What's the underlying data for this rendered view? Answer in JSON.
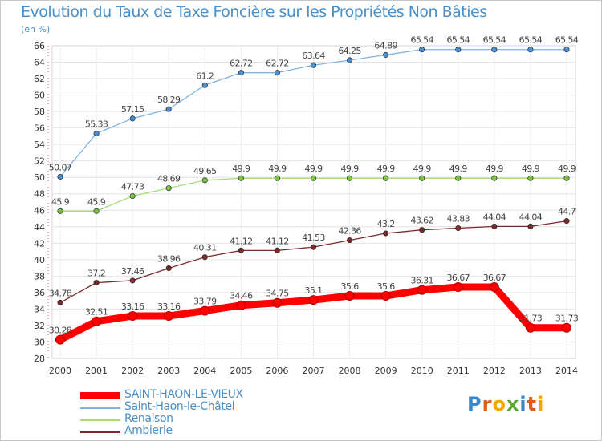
{
  "chart_data": {
    "type": "line",
    "title": "Evolution du Taux de Taxe Foncière sur les Propriétés Non Bâties",
    "ylabel": "(en %)",
    "xlabel": "",
    "ylim": [
      28,
      66
    ],
    "ytick_step": 2,
    "categories": [
      "2000",
      "2001",
      "2002",
      "2003",
      "2004",
      "2005",
      "2006",
      "2007",
      "2008",
      "2009",
      "2010",
      "2011",
      "2012",
      "2013",
      "2014"
    ],
    "series": [
      {
        "name": "SAINT-HAON-LE-VIEUX",
        "color": "#ff0000",
        "values": [
          30.28,
          32.51,
          33.16,
          33.16,
          33.79,
          34.46,
          34.75,
          35.1,
          35.6,
          35.6,
          36.31,
          36.67,
          36.67,
          31.73,
          31.73
        ],
        "labels": [
          "30.28",
          "32.51",
          "33.16",
          "33.16",
          "33.79",
          "34.46",
          "34.75",
          "35.1",
          "35.6",
          "35.6",
          "36.31",
          "36.67",
          "36.67",
          "31.73",
          "31.73"
        ]
      },
      {
        "name": "Saint-Haon-le-Châtel",
        "color": "#7fb2e0",
        "marker": "#4a8fd0",
        "values": [
          50.07,
          55.33,
          57.15,
          58.29,
          61.2,
          62.72,
          62.72,
          63.64,
          64.25,
          64.89,
          65.54,
          65.54,
          65.54,
          65.54,
          65.54
        ],
        "labels": [
          "50.07",
          "55.33",
          "57.15",
          "58.29",
          "61.2",
          "62.72",
          "62.72",
          "63.64",
          "64.25",
          "64.89",
          "65.54",
          "65.54",
          "65.54",
          "65.54",
          "65.54"
        ]
      },
      {
        "name": "Renaison",
        "color": "#a8dc78",
        "marker": "#7cc444",
        "values": [
          45.9,
          45.9,
          47.73,
          48.69,
          49.65,
          49.9,
          49.9,
          49.9,
          49.9,
          49.9,
          49.9,
          49.9,
          49.9,
          49.9,
          49.9
        ],
        "labels": [
          "45.9",
          "45.9",
          "47.73",
          "48.69",
          "49.65",
          "49.9",
          "49.9",
          "49.9",
          "49.9",
          "49.9",
          "49.9",
          "49.9",
          "49.9",
          "49.9",
          "49.9"
        ]
      },
      {
        "name": "Ambierle",
        "color": "#7a2a2a",
        "marker": "#7a2a2a",
        "values": [
          34.78,
          37.2,
          37.46,
          38.96,
          40.31,
          41.12,
          41.12,
          41.53,
          42.36,
          43.2,
          43.62,
          43.83,
          44.04,
          44.04,
          44.7
        ],
        "labels": [
          "34.78",
          "37.2",
          "37.46",
          "38.96",
          "40.31",
          "41.12",
          "41.12",
          "41.53",
          "42.36",
          "43.2",
          "43.62",
          "43.83",
          "44.04",
          "44.04",
          "44.7"
        ]
      }
    ],
    "legend": "bottom-left"
  },
  "logo": {
    "letters": [
      "P",
      "r",
      "o",
      "x",
      "i",
      "t",
      "i"
    ],
    "colors": [
      "#3a86c8",
      "#e05a1a",
      "#f2a800",
      "#5aa832",
      "#3a86c8",
      "#e05a1a",
      "#f2a800"
    ]
  }
}
